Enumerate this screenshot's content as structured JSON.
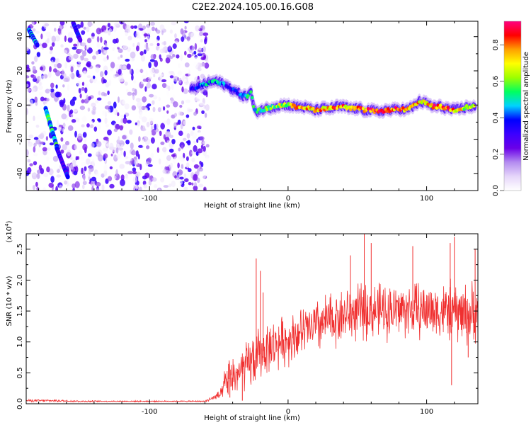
{
  "figure": {
    "title": "C2E2.2024.105.00.16.G08"
  },
  "chart_data": [
    {
      "type": "heatmap",
      "xlabel": "Height of straight line (km)",
      "ylabel": "Frequency (Hz)",
      "xlim": [
        -189,
        137
      ],
      "ylim": [
        -50,
        49
      ],
      "x_ticks": [
        -100,
        0,
        100
      ],
      "x_tick_labels": [
        "-100",
        "0",
        "100"
      ],
      "y_ticks": [
        -40,
        -20,
        0,
        20,
        40
      ],
      "y_tick_labels": [
        "-40",
        "-20",
        "0",
        "20",
        "40"
      ],
      "colorbar": {
        "label": "Normalized spectral amplitude",
        "range": [
          0,
          0.93
        ],
        "ticks": [
          0.0,
          0.2,
          0.4,
          0.6,
          0.8
        ],
        "tick_labels": [
          "0.0",
          "0.2",
          "0.4",
          "0.6",
          "0.8"
        ],
        "colormap": [
          "#ffffff",
          "#e6d6fa",
          "#b48cf0",
          "#6a00e8",
          "#3c00ff",
          "#0000ff",
          "#00d2ff",
          "#00ff60",
          "#9cff00",
          "#ffff00",
          "#ffa000",
          "#ff0000",
          "#ff0080"
        ]
      },
      "noise_region_x": [
        -189,
        -58
      ],
      "noise_amplitude_range": [
        0.0,
        0.35
      ],
      "ridge": {
        "x": [
          -70,
          -64,
          -58,
          -52,
          -46,
          -40,
          -34,
          -30,
          -27,
          -24,
          -20,
          -15,
          -10,
          -5,
          0,
          5,
          10,
          15,
          20,
          25,
          30,
          35,
          40,
          45,
          50,
          55,
          60,
          65,
          70,
          75,
          80,
          85,
          90,
          95,
          100,
          105,
          110,
          115,
          120,
          125,
          130,
          135
        ],
        "y": [
          9,
          11,
          13,
          14,
          12,
          9,
          6,
          5,
          8,
          -4,
          -3,
          -2,
          -1,
          0,
          0,
          -1,
          -1,
          -2,
          -3,
          -2,
          -2,
          -1,
          -1,
          -2,
          -2,
          -3,
          -3,
          -4,
          -3,
          -3,
          -2,
          -3,
          -1,
          2,
          1,
          -1,
          -1,
          -2,
          -3,
          -2,
          -1,
          -1
        ],
        "amplitude": [
          0.35,
          0.45,
          0.5,
          0.5,
          0.45,
          0.4,
          0.45,
          0.5,
          0.55,
          0.55,
          0.6,
          0.62,
          0.65,
          0.7,
          0.72,
          0.75,
          0.78,
          0.8,
          0.82,
          0.8,
          0.82,
          0.85,
          0.82,
          0.85,
          0.88,
          0.85,
          0.88,
          0.85,
          0.85,
          0.88,
          0.88,
          0.86,
          0.8,
          0.78,
          0.8,
          0.85,
          0.88,
          0.85,
          0.8,
          0.75,
          0.7,
          0.65
        ]
      },
      "streaks": [
        {
          "x": [
            -187,
            -181
          ],
          "y": [
            44,
            35
          ],
          "amplitude": 0.45
        },
        {
          "x": [
            -175,
            -167
          ],
          "y": [
            -2,
            -24
          ],
          "amplitude": 0.5
        },
        {
          "x": [
            -167,
            -159
          ],
          "y": [
            -25,
            -42
          ],
          "amplitude": 0.35
        },
        {
          "x": [
            -155,
            -150
          ],
          "y": [
            48,
            38
          ],
          "amplitude": 0.35
        }
      ]
    },
    {
      "type": "line",
      "xlabel": "Height of straight line (km)",
      "ylabel": "SNR (10 * v/v)",
      "y_multiplier": "(x10",
      "y_multiplier_exp": "4",
      "y_multiplier_close": ")",
      "xlim": [
        -189,
        137
      ],
      "ylim": [
        0,
        2.75
      ],
      "x_ticks": [
        -100,
        0,
        100
      ],
      "x_tick_labels": [
        "-100",
        "0",
        "100"
      ],
      "y_ticks": [
        0,
        0.5,
        1.0,
        1.5,
        2.0,
        2.5
      ],
      "y_tick_labels": [
        "0.0",
        "0.5",
        "1.0",
        "1.5",
        "2.0",
        "2.5"
      ],
      "color": "#f03030",
      "series": [
        {
          "x": [
            -189,
            -170,
            -150,
            -130,
            -110,
            -90,
            -70,
            -60,
            -48,
            -45,
            -40,
            -35,
            -30,
            -25,
            -22,
            -18,
            -15,
            -10,
            -5,
            0,
            5,
            10,
            20,
            30,
            40,
            50,
            60,
            70,
            80,
            90,
            100,
            110,
            120,
            130,
            137
          ],
          "baseline": [
            0.05,
            0.05,
            0.04,
            0.04,
            0.04,
            0.04,
            0.04,
            0.04,
            0.15,
            0.35,
            0.45,
            0.5,
            0.6,
            0.7,
            0.75,
            0.85,
            0.9,
            0.95,
            1.0,
            1.05,
            1.1,
            1.15,
            1.25,
            1.35,
            1.42,
            1.48,
            1.5,
            1.5,
            1.52,
            1.52,
            1.52,
            1.5,
            1.48,
            1.45,
            1.45
          ],
          "spread": [
            0.02,
            0.02,
            0.015,
            0.01,
            0.01,
            0.01,
            0.01,
            0.01,
            0.1,
            0.3,
            0.35,
            0.35,
            0.4,
            0.45,
            0.45,
            0.4,
            0.4,
            0.4,
            0.4,
            0.4,
            0.4,
            0.4,
            0.45,
            0.45,
            0.45,
            0.45,
            0.45,
            0.45,
            0.45,
            0.45,
            0.45,
            0.45,
            0.5,
            0.5,
            0.5
          ],
          "peaks": [
            {
              "x": -23,
              "y": 2.35
            },
            {
              "x": -20,
              "y": 2.15
            },
            {
              "x": -18,
              "y": 1.8
            },
            {
              "x": 45,
              "y": 2.4
            },
            {
              "x": 55,
              "y": 2.78
            },
            {
              "x": 60,
              "y": 2.6
            },
            {
              "x": 90,
              "y": 2.55
            },
            {
              "x": 120,
              "y": 2.7
            },
            {
              "x": 117,
              "y": 2.6
            },
            {
              "x": 135,
              "y": 2.5
            }
          ],
          "dips": [
            {
              "x": 118,
              "y": 0.3
            },
            {
              "x": 130,
              "y": 0.75
            },
            {
              "x": -33,
              "y": 0.05
            },
            {
              "x": -42,
              "y": 0.1
            }
          ]
        }
      ]
    }
  ]
}
